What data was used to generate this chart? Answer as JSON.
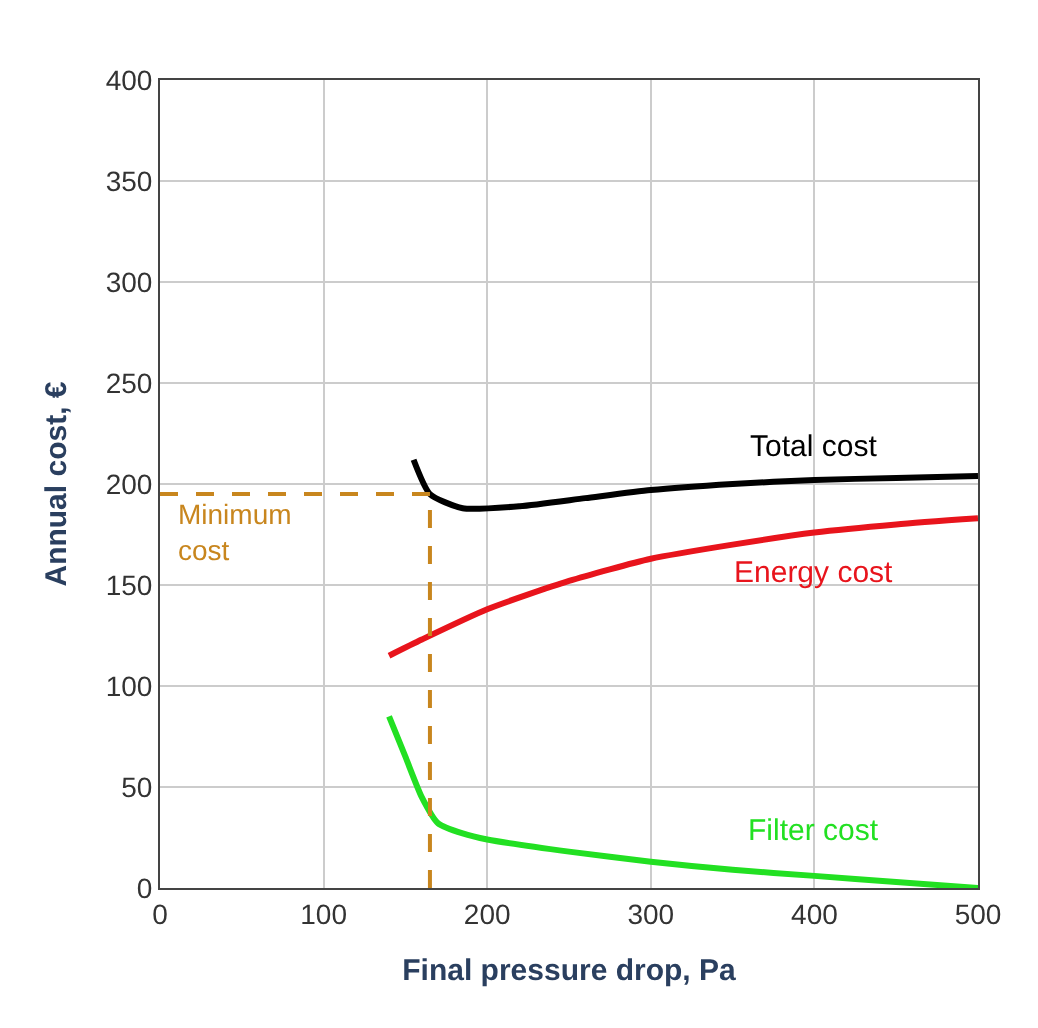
{
  "chart_data": {
    "type": "line",
    "xlabel": "Final pressure drop, Pa",
    "ylabel": "Annual cost, €",
    "xlim": [
      0,
      500
    ],
    "xticks": [
      0,
      100,
      200,
      300,
      400,
      500
    ],
    "ylim": [
      0,
      400
    ],
    "yticks": [
      0,
      50,
      100,
      150,
      200,
      250,
      300,
      350,
      400
    ],
    "grid": true,
    "legend": false,
    "marker": "none",
    "line_style": "solid",
    "series": [
      {
        "name": "Total cost",
        "color": "#000000",
        "x": [
          155,
          165,
          185,
          220,
          260,
          300,
          350,
          400,
          450,
          500
        ],
        "values": [
          212,
          195,
          188,
          189,
          193,
          197,
          200,
          202,
          203,
          204
        ]
      },
      {
        "name": "Energy cost",
        "color": "#e8141c",
        "x": [
          140,
          160,
          200,
          250,
          300,
          350,
          400,
          450,
          500
        ],
        "values": [
          115,
          123,
          138,
          152,
          163,
          170,
          176,
          180,
          183
        ]
      },
      {
        "name": "Filter cost",
        "color": "#22e022",
        "x": [
          140,
          150,
          160,
          170,
          185,
          200,
          250,
          300,
          350,
          400,
          450,
          500
        ],
        "values": [
          85,
          65,
          45,
          32,
          27,
          24,
          18,
          13,
          9,
          6,
          3,
          0
        ]
      }
    ],
    "ref_lines": [
      {
        "axis": "y",
        "value": 195,
        "label": "Minimum\ncost",
        "color": "#c8861e",
        "line_style": "dashed"
      },
      {
        "axis": "x",
        "value": 165,
        "color": "#c8861e",
        "line_style": "dashed"
      }
    ]
  }
}
